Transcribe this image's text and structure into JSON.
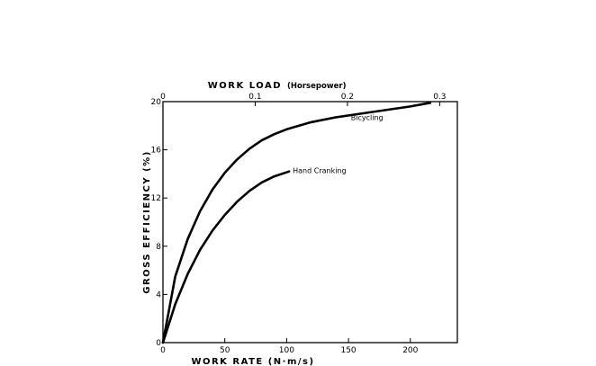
{
  "chart_data": {
    "type": "line",
    "xlabel": "WORK  RATE  (N·m/s)",
    "x_top_label": "WORK  LOAD",
    "x_top_label_unit": "(Horsepower)",
    "ylabel": "GROSS  EFFICIENCY  (%)",
    "xlim": [
      0,
      238
    ],
    "ylim": [
      0,
      20
    ],
    "x_ticks": [
      0,
      50,
      100,
      150,
      200
    ],
    "x_tick_labels": [
      "0",
      "50",
      "100",
      "150",
      "200"
    ],
    "y_ticks": [
      0,
      4,
      8,
      12,
      16,
      20
    ],
    "y_tick_labels": [
      "0",
      "4",
      "8",
      "12",
      "16",
      "20"
    ],
    "x_top_ticks": [
      0,
      0.1,
      0.2,
      0.3
    ],
    "x_top_tick_labels": [
      "0",
      "0.1",
      "0.2",
      "0.3"
    ],
    "x_top_tick_values_in_x_units": [
      0,
      74.57,
      149.14,
      223.71
    ],
    "series": [
      {
        "name": "Bicycling",
        "x": [
          0,
          10,
          20,
          30,
          40,
          50,
          60,
          70,
          80,
          90,
          100,
          120,
          140,
          160,
          180,
          200,
          216
        ],
        "y": [
          0,
          5.5,
          8.6,
          10.9,
          12.7,
          14.1,
          15.2,
          16.1,
          16.8,
          17.3,
          17.7,
          18.3,
          18.7,
          19.0,
          19.3,
          19.6,
          19.9
        ]
      },
      {
        "name": "Hand Cranking",
        "x": [
          0,
          10,
          20,
          30,
          40,
          50,
          60,
          70,
          80,
          90,
          102
        ],
        "y": [
          0,
          3.2,
          5.7,
          7.7,
          9.3,
          10.6,
          11.7,
          12.6,
          13.3,
          13.8,
          14.2
        ]
      }
    ],
    "grid": false,
    "legend": "none"
  }
}
